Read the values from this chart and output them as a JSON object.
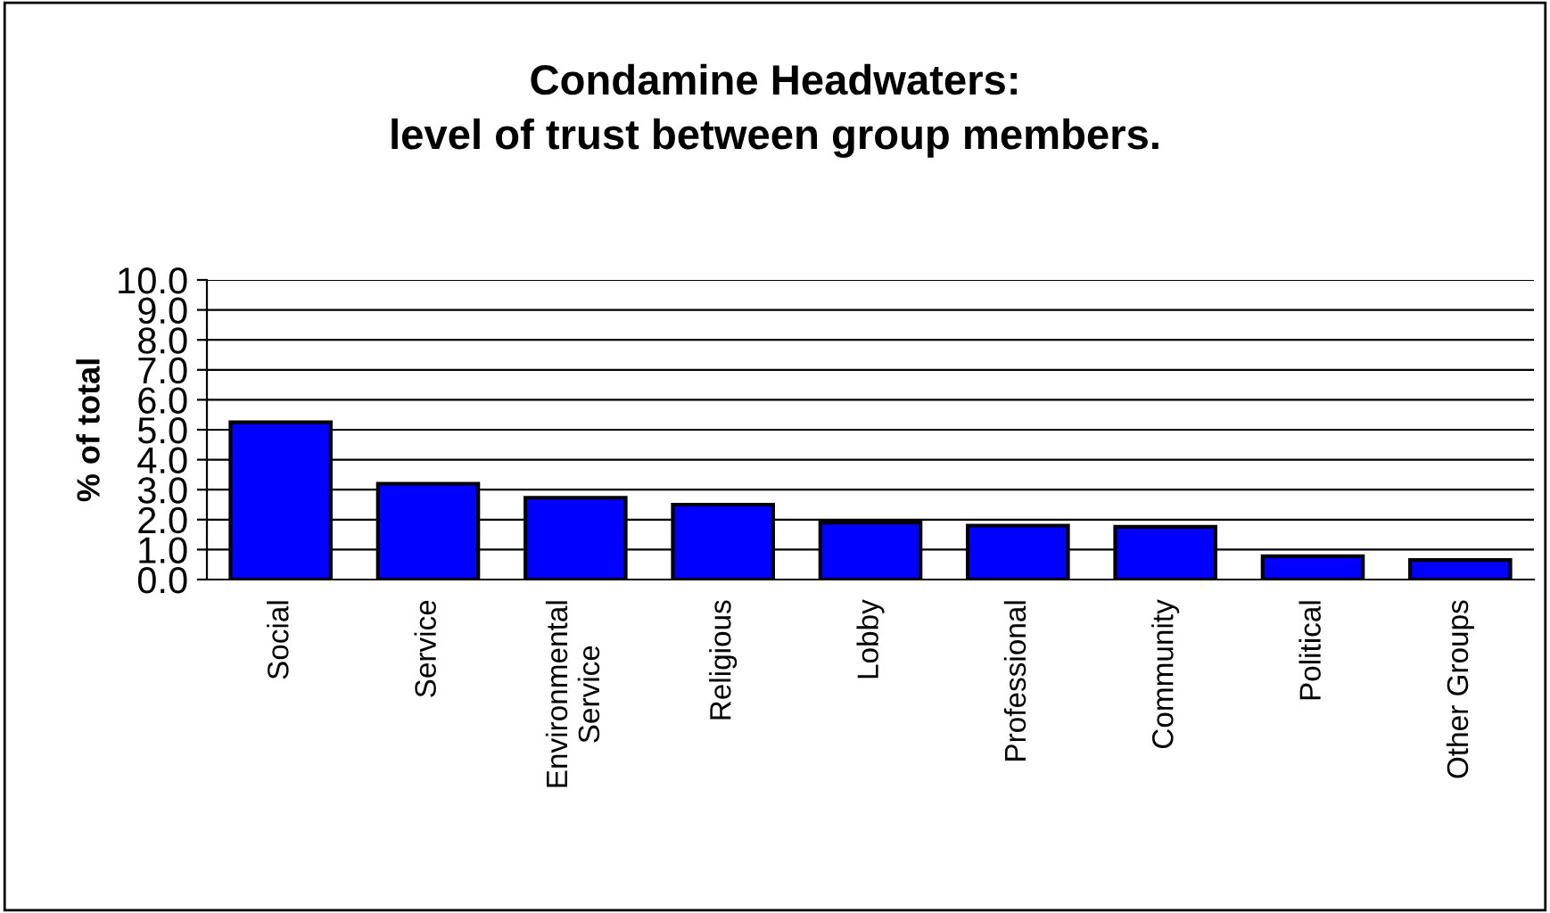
{
  "chart_data": {
    "type": "bar",
    "title": "Condamine Headwaters:\nlevel of trust between group members.",
    "ylabel": "% of total",
    "categories": [
      "Social",
      "Service",
      "Environmental\nService",
      "Religious",
      "Lobby",
      "Professional",
      "Community",
      "Political",
      "Other Groups"
    ],
    "values": [
      5.25,
      3.2,
      2.73,
      2.5,
      1.9,
      1.8,
      1.76,
      0.78,
      0.65
    ],
    "color": "#0000ff",
    "ylim": [
      0,
      10
    ],
    "yticks": [
      {
        "value": 0,
        "label": "0.0"
      },
      {
        "value": 1,
        "label": "1.0"
      },
      {
        "value": 2,
        "label": "2.0"
      },
      {
        "value": 3,
        "label": "3.0"
      },
      {
        "value": 4,
        "label": "4.0"
      },
      {
        "value": 5,
        "label": "5.0"
      },
      {
        "value": 6,
        "label": "6.0"
      },
      {
        "value": 7,
        "label": "7.0"
      },
      {
        "value": 8,
        "label": "8.0"
      },
      {
        "value": 9,
        "label": "9.0"
      },
      {
        "value": 10,
        "label": "10.0"
      }
    ],
    "grid": "y"
  }
}
